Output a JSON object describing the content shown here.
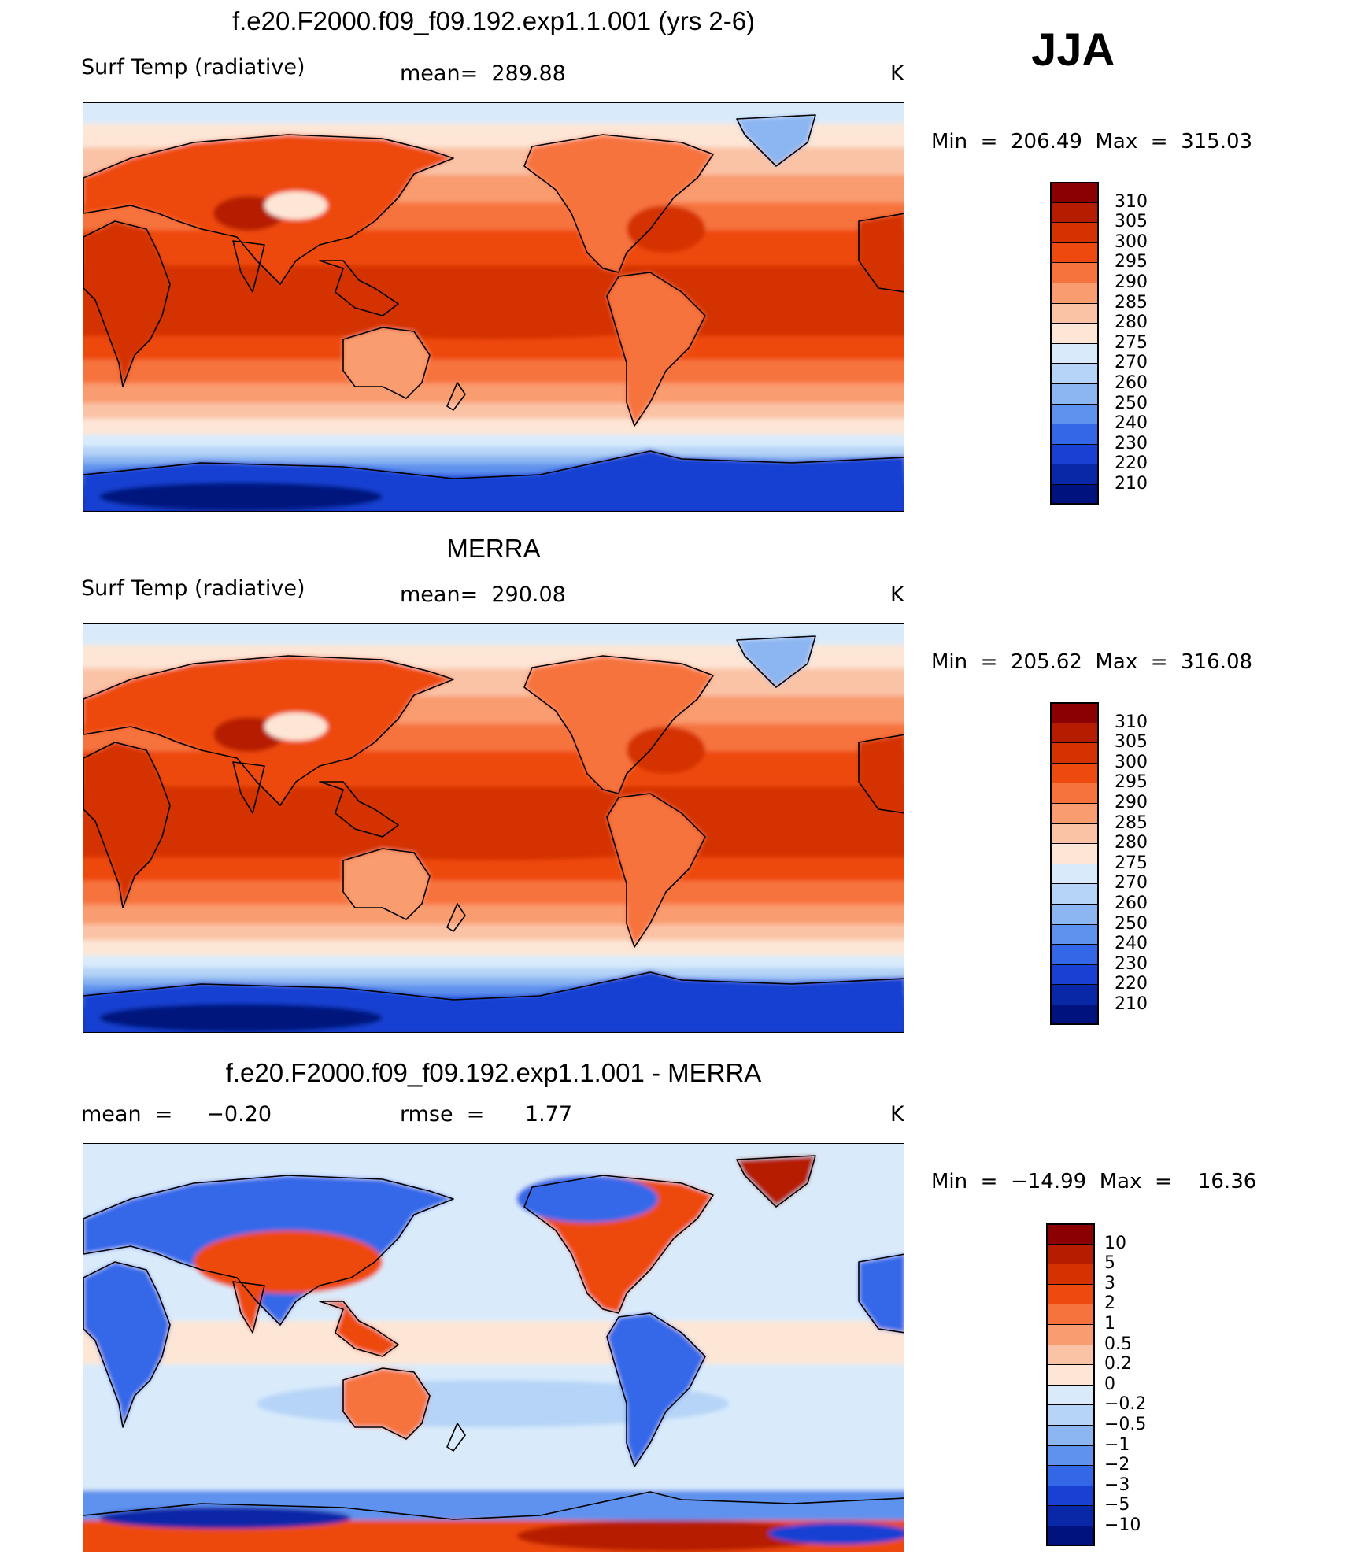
{
  "season": "JJA",
  "panels": [
    {
      "title": "f.e20.F2000.f09_f09.192.exp1.1.001 (yrs 2-6)",
      "variable": "Surf Temp (radiative)",
      "stat": "mean=  289.88",
      "stat2": "",
      "units": "K",
      "min_label": "Min  =  206.49  Max  =  315.03",
      "scale": "abs"
    },
    {
      "title": "MERRA",
      "variable": "Surf Temp (radiative)",
      "stat": "mean=  290.08",
      "stat2": "",
      "units": "K",
      "min_label": "Min  =  205.62  Max  =  316.08",
      "scale": "abs"
    },
    {
      "title": "f.e20.F2000.f09_f09.192.exp1.1.001 - MERRA",
      "variable": "mean  =     −0.20",
      "stat": "",
      "stat2": "rmse  =      1.77",
      "units": "K",
      "min_label": "Min  =  −14.99  Max  =    16.36",
      "scale": "diff"
    }
  ],
  "colorbars": {
    "abs": {
      "ticks": [
        "310",
        "305",
        "300",
        "295",
        "290",
        "285",
        "280",
        "275",
        "270",
        "260",
        "250",
        "240",
        "230",
        "220",
        "210"
      ],
      "colors": [
        "#8b0000",
        "#b51c00",
        "#d43200",
        "#ee4a10",
        "#f7733d",
        "#f99c70",
        "#fbc3a6",
        "#fde6d6",
        "#d9ebfb",
        "#b6d4f7",
        "#8cb6f2",
        "#5e92ee",
        "#3467e8",
        "#1840d2",
        "#0828a8",
        "#00127d"
      ]
    },
    "diff": {
      "ticks": [
        "10",
        "5",
        "3",
        "2",
        "1",
        "0.5",
        "0.2",
        "0",
        "−0.2",
        "−0.5",
        "−1",
        "−2",
        "−3",
        "−5",
        "−10"
      ],
      "colors": [
        "#8b0000",
        "#b51c00",
        "#d43200",
        "#ee4a10",
        "#f7733d",
        "#f99c70",
        "#fbc3a6",
        "#fde6d6",
        "#d9ebfb",
        "#b6d4f7",
        "#8cb6f2",
        "#5e92ee",
        "#3467e8",
        "#1840d2",
        "#0828a8",
        "#00127d"
      ]
    }
  }
}
